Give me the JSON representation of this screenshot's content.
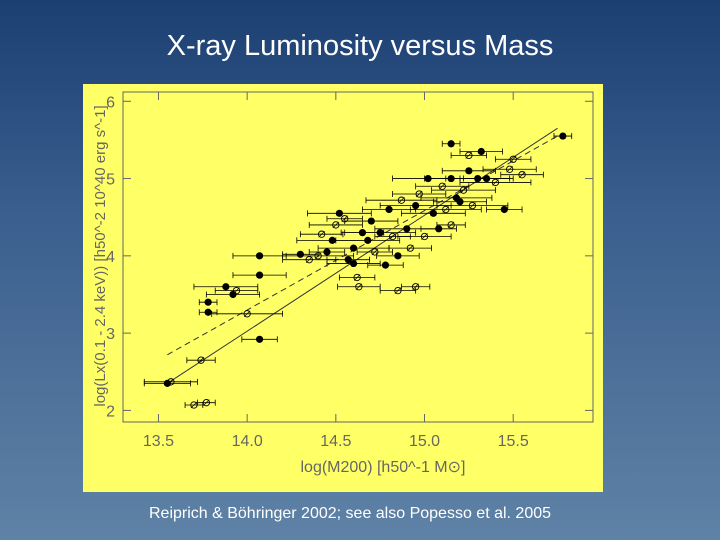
{
  "slide": {
    "title": "X-ray Luminosity versus Mass",
    "caption": "Reiprich & Böhringer 2002;  see also Popesso et  al. 2005"
  },
  "colors": {
    "background_top": "#1c3f72",
    "background_bottom": "#5f82a6",
    "panel": "#ffff66",
    "ink": "#666666",
    "points": "#000000"
  },
  "chart_data": {
    "type": "scatter",
    "xlabel": "log(M200) [h50^-1 M⊙]",
    "ylabel": "log(Lx(0.1 - 2.4 keV)) [h50^-2 10^40 erg s^-1]",
    "xlim": [
      13.3,
      15.95
    ],
    "ylim": [
      1.85,
      6.12
    ],
    "x_ticks": [
      "13.5",
      "14.0",
      "14.5",
      "15.0",
      "15.5"
    ],
    "y_ticks": [
      "2",
      "3",
      "4",
      "5",
      "6"
    ],
    "grid": false,
    "legend": "none",
    "lines": [
      {
        "style": "solid",
        "x": [
          13.55,
          15.75
        ],
        "y": [
          2.35,
          5.65
        ]
      },
      {
        "style": "dashed",
        "x": [
          13.55,
          15.75
        ],
        "y": [
          2.72,
          5.55
        ]
      }
    ],
    "points": [
      {
        "x": 13.55,
        "y": 2.35,
        "xerr": 0.13,
        "filled": true
      },
      {
        "x": 13.57,
        "y": 2.37,
        "xerr": 0.15,
        "filled": false
      },
      {
        "x": 13.7,
        "y": 2.07,
        "xerr": 0.05,
        "filled": false
      },
      {
        "x": 13.77,
        "y": 2.1,
        "xerr": 0.05,
        "filled": false
      },
      {
        "x": 13.74,
        "y": 2.65,
        "xerr": 0.08,
        "filled": false
      },
      {
        "x": 13.78,
        "y": 3.27,
        "xerr": 0.05,
        "filled": true
      },
      {
        "x": 13.78,
        "y": 3.4,
        "xerr": 0.05,
        "filled": true
      },
      {
        "x": 13.88,
        "y": 3.6,
        "xerr": 0.18,
        "filled": true
      },
      {
        "x": 13.92,
        "y": 3.5,
        "xerr": 0.15,
        "filled": true
      },
      {
        "x": 13.94,
        "y": 3.55,
        "xerr": 0.12,
        "filled": false
      },
      {
        "x": 14.0,
        "y": 3.25,
        "xerr": 0.2,
        "filled": false
      },
      {
        "x": 14.07,
        "y": 2.92,
        "xerr": 0.1,
        "filled": true
      },
      {
        "x": 14.07,
        "y": 3.75,
        "xerr": 0.15,
        "filled": true
      },
      {
        "x": 14.07,
        "y": 4.0,
        "xerr": 0.15,
        "filled": true
      },
      {
        "x": 14.3,
        "y": 4.02,
        "xerr": 0.1,
        "filled": true
      },
      {
        "x": 14.35,
        "y": 3.95,
        "xerr": 0.15,
        "filled": false
      },
      {
        "x": 14.4,
        "y": 4.0,
        "xerr": 0.2,
        "filled": false
      },
      {
        "x": 14.42,
        "y": 4.28,
        "xerr": 0.12,
        "filled": false
      },
      {
        "x": 14.45,
        "y": 4.05,
        "xerr": 0.1,
        "filled": true
      },
      {
        "x": 14.48,
        "y": 4.2,
        "xerr": 0.2,
        "filled": true
      },
      {
        "x": 14.5,
        "y": 4.4,
        "xerr": 0.15,
        "filled": false
      },
      {
        "x": 14.52,
        "y": 4.55,
        "xerr": 0.18,
        "filled": true
      },
      {
        "x": 14.55,
        "y": 4.48,
        "xerr": 0.1,
        "filled": false
      },
      {
        "x": 14.57,
        "y": 3.95,
        "xerr": 0.12,
        "filled": true
      },
      {
        "x": 14.6,
        "y": 3.9,
        "xerr": 0.15,
        "filled": true
      },
      {
        "x": 14.62,
        "y": 3.72,
        "xerr": 0.1,
        "filled": false
      },
      {
        "x": 14.63,
        "y": 3.6,
        "xerr": 0.12,
        "filled": false
      },
      {
        "x": 14.6,
        "y": 4.1,
        "xerr": 0.2,
        "filled": true
      },
      {
        "x": 14.65,
        "y": 4.3,
        "xerr": 0.12,
        "filled": true
      },
      {
        "x": 14.68,
        "y": 4.2,
        "xerr": 0.18,
        "filled": true
      },
      {
        "x": 14.7,
        "y": 4.45,
        "xerr": 0.15,
        "filled": true
      },
      {
        "x": 14.72,
        "y": 4.05,
        "xerr": 0.1,
        "filled": false
      },
      {
        "x": 14.75,
        "y": 4.3,
        "xerr": 0.2,
        "filled": true
      },
      {
        "x": 14.8,
        "y": 4.6,
        "xerr": 0.15,
        "filled": true
      },
      {
        "x": 14.82,
        "y": 4.25,
        "xerr": 0.1,
        "filled": false
      },
      {
        "x": 14.85,
        "y": 4.0,
        "xerr": 0.12,
        "filled": true
      },
      {
        "x": 14.87,
        "y": 4.72,
        "xerr": 0.2,
        "filled": false
      },
      {
        "x": 14.9,
        "y": 4.35,
        "xerr": 0.18,
        "filled": true
      },
      {
        "x": 14.92,
        "y": 4.1,
        "xerr": 0.12,
        "filled": false
      },
      {
        "x": 14.95,
        "y": 4.65,
        "xerr": 0.2,
        "filled": true
      },
      {
        "x": 14.97,
        "y": 4.8,
        "xerr": 0.15,
        "filled": false
      },
      {
        "x": 15.0,
        "y": 4.25,
        "xerr": 0.15,
        "filled": false
      },
      {
        "x": 15.02,
        "y": 5.0,
        "xerr": 0.2,
        "filled": true
      },
      {
        "x": 15.05,
        "y": 4.55,
        "xerr": 0.18,
        "filled": true
      },
      {
        "x": 15.08,
        "y": 4.35,
        "xerr": 0.1,
        "filled": true
      },
      {
        "x": 15.1,
        "y": 4.9,
        "xerr": 0.15,
        "filled": false
      },
      {
        "x": 15.12,
        "y": 4.6,
        "xerr": 0.2,
        "filled": false
      },
      {
        "x": 15.15,
        "y": 5.0,
        "xerr": 0.15,
        "filled": true
      },
      {
        "x": 15.18,
        "y": 4.75,
        "xerr": 0.2,
        "filled": true
      },
      {
        "x": 15.2,
        "y": 4.7,
        "xerr": 0.15,
        "filled": true
      },
      {
        "x": 15.22,
        "y": 4.85,
        "xerr": 0.18,
        "filled": false
      },
      {
        "x": 15.25,
        "y": 5.1,
        "xerr": 0.15,
        "filled": true
      },
      {
        "x": 15.27,
        "y": 4.65,
        "xerr": 0.2,
        "filled": false
      },
      {
        "x": 15.3,
        "y": 5.0,
        "xerr": 0.18,
        "filled": true
      },
      {
        "x": 15.32,
        "y": 5.35,
        "xerr": 0.12,
        "filled": true
      },
      {
        "x": 15.15,
        "y": 5.45,
        "xerr": 0.05,
        "filled": true
      },
      {
        "x": 15.15,
        "y": 4.4,
        "xerr": 0.08,
        "filled": false
      },
      {
        "x": 15.25,
        "y": 5.3,
        "xerr": 0.1,
        "filled": false
      },
      {
        "x": 15.35,
        "y": 5.0,
        "xerr": 0.15,
        "filled": true
      },
      {
        "x": 15.4,
        "y": 4.95,
        "xerr": 0.2,
        "filled": false
      },
      {
        "x": 15.45,
        "y": 4.6,
        "xerr": 0.1,
        "filled": true
      },
      {
        "x": 15.48,
        "y": 5.12,
        "xerr": 0.15,
        "filled": false
      },
      {
        "x": 15.5,
        "y": 5.25,
        "xerr": 0.1,
        "filled": false
      },
      {
        "x": 15.55,
        "y": 5.05,
        "xerr": 0.12,
        "filled": false
      },
      {
        "x": 15.78,
        "y": 5.55,
        "xerr": 0.05,
        "filled": true
      },
      {
        "x": 14.95,
        "y": 3.6,
        "xerr": 0.08,
        "filled": false
      },
      {
        "x": 14.78,
        "y": 3.88,
        "xerr": 0.1,
        "filled": true
      },
      {
        "x": 14.85,
        "y": 3.55,
        "xerr": 0.1,
        "filled": false
      }
    ]
  }
}
